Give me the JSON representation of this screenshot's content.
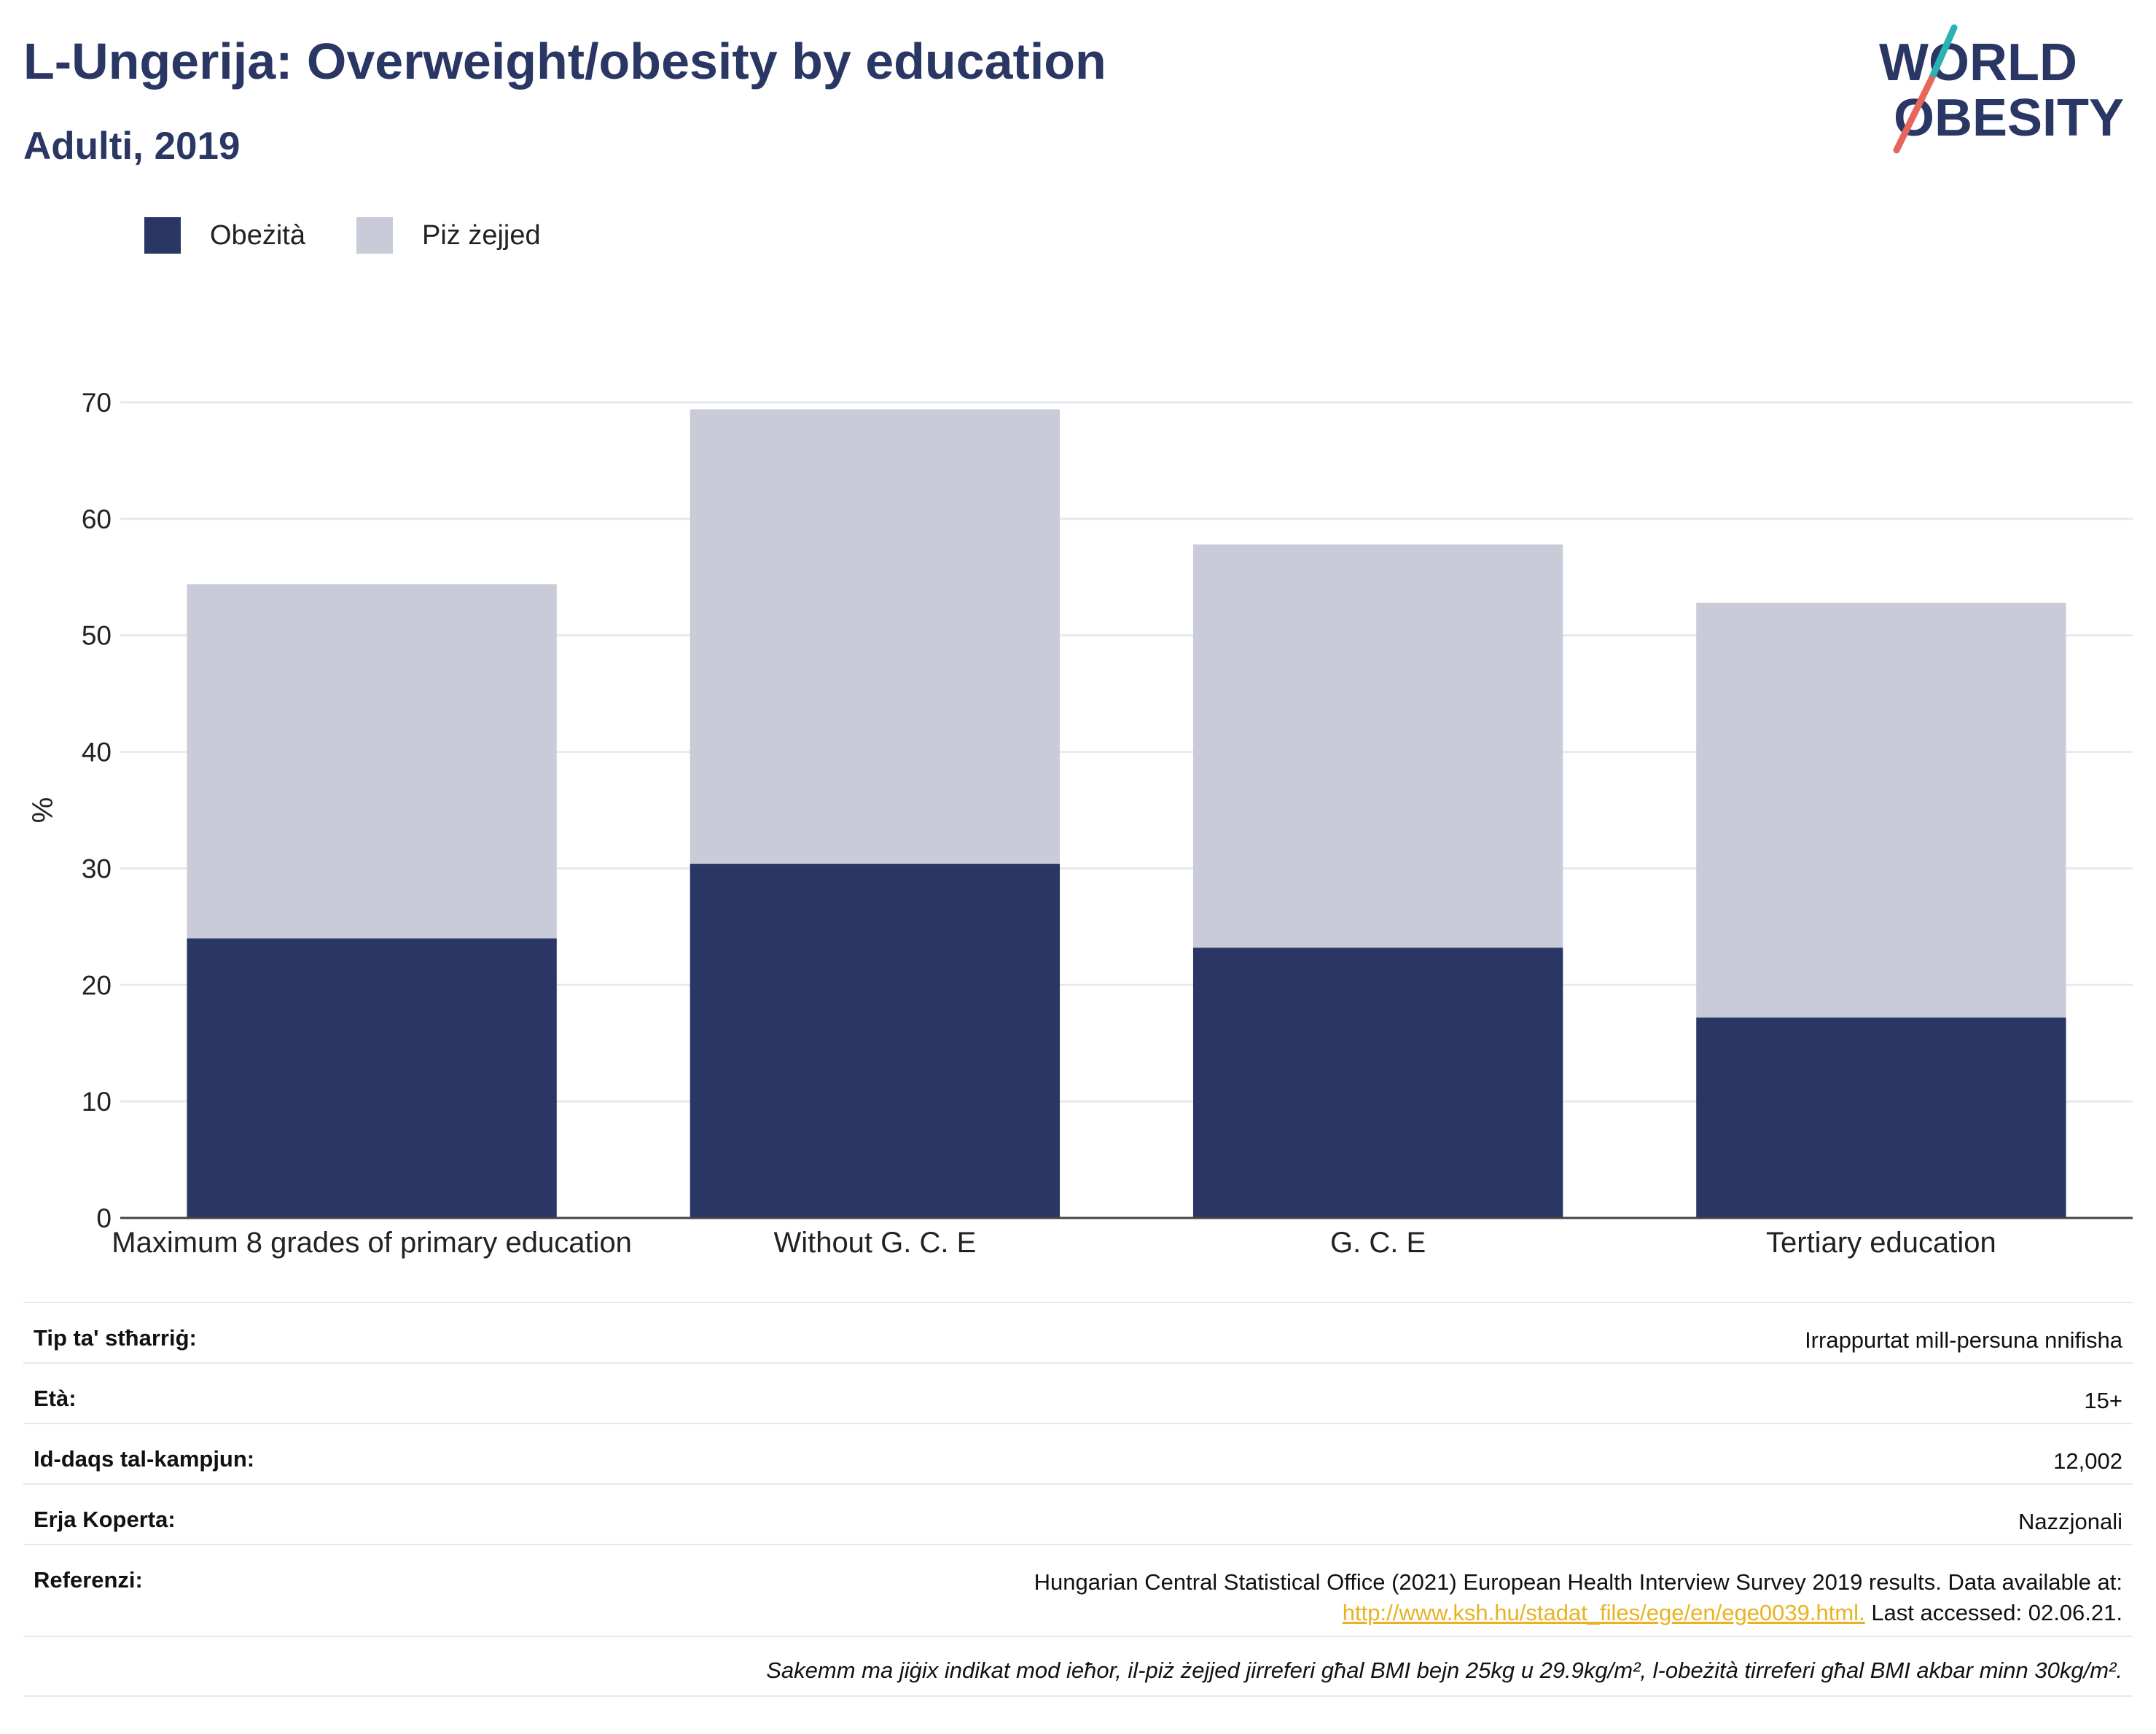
{
  "header": {
    "title": "L-Ungerija: Overweight/obesity by education",
    "subtitle": "Adulti, 2019"
  },
  "logo": {
    "line1": "WORLD",
    "line2": "OBESITY"
  },
  "legend": [
    {
      "label": "Obeżità",
      "color": "#2a3663"
    },
    {
      "label": "Piż żejjed",
      "color": "#c9ccd8"
    }
  ],
  "chart_data": {
    "type": "bar",
    "stacked": true,
    "categories": [
      "Maximum 8 grades of primary education",
      "Without G. C. E",
      "G. C. E",
      "Tertiary education"
    ],
    "series": [
      {
        "name": "Obeżità",
        "color": "#2a3663",
        "values": [
          24.0,
          30.4,
          23.2,
          17.2
        ]
      },
      {
        "name": "Piż żejjed",
        "color": "#c9ccd8",
        "values": [
          30.4,
          39.0,
          34.6,
          35.6
        ]
      }
    ],
    "ylabel": "%",
    "ylim": [
      0,
      70
    ],
    "yticks": [
      0,
      10,
      20,
      30,
      40,
      50,
      60,
      70
    ],
    "grid": true,
    "legend_position": "top-left"
  },
  "info": [
    {
      "label": "Tip ta' stħarriġ:",
      "value": "Irrappurtat mill-persuna nnifisha"
    },
    {
      "label": "Età:",
      "value": "15+"
    },
    {
      "label": "Id-daqs tal-kampjun:",
      "value": "12,002"
    },
    {
      "label": "Erja Koperta:",
      "value": "Nazzjonali"
    }
  ],
  "reference": {
    "label": "Referenzi:",
    "text": "Hungarian Central Statistical Office (2021) European Health Interview Survey 2019 results. Data available at:",
    "link": "http://www.ksh.hu/stadat_files/ege/en/ege0039.html.",
    "accessed": "Last accessed: 02.06.21."
  },
  "footnote": "Sakemm ma jiġix indikat mod ieħor, il-piż żejjed jirreferi għal BMI bejn 25kg u 29.9kg/m², l-obeżità tirreferi għal BMI akbar minn 30kg/m²."
}
